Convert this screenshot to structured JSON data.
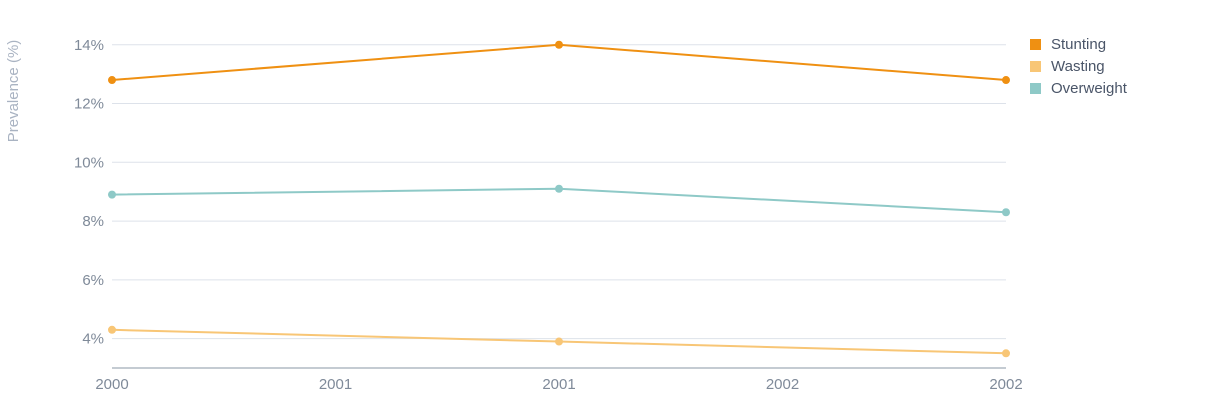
{
  "chart_data": {
    "type": "line",
    "xlabel": "",
    "ylabel": "Prevalence (%)",
    "x": [
      "2000",
      "2001",
      "2001",
      "2002",
      "2002"
    ],
    "ylim": [
      3,
      14.4
    ],
    "yticks": [
      "4%",
      "6%",
      "8%",
      "10%",
      "12%",
      "14%"
    ],
    "ytick_values": [
      4,
      6,
      8,
      10,
      12,
      14
    ],
    "grid": true,
    "legend_position": "top-right",
    "series": [
      {
        "name": "Stunting",
        "color": "#ef9012",
        "points": [
          {
            "x": "2000",
            "y": 12.8
          },
          {
            "x": "2001",
            "y": 14.0
          },
          {
            "x": "2002",
            "y": 12.8
          }
        ]
      },
      {
        "name": "Wasting",
        "color": "#f8c676",
        "points": [
          {
            "x": "2000",
            "y": 4.3
          },
          {
            "x": "2001",
            "y": 3.9
          },
          {
            "x": "2002",
            "y": 3.5
          }
        ]
      },
      {
        "name": "Overweight",
        "color": "#8ec9c7",
        "points": [
          {
            "x": "2000",
            "y": 8.9
          },
          {
            "x": "2001",
            "y": 9.1
          },
          {
            "x": "2002",
            "y": 8.3
          }
        ]
      }
    ]
  },
  "colors": {
    "grid": "#dde2ea",
    "axis": "#8a97a6"
  }
}
